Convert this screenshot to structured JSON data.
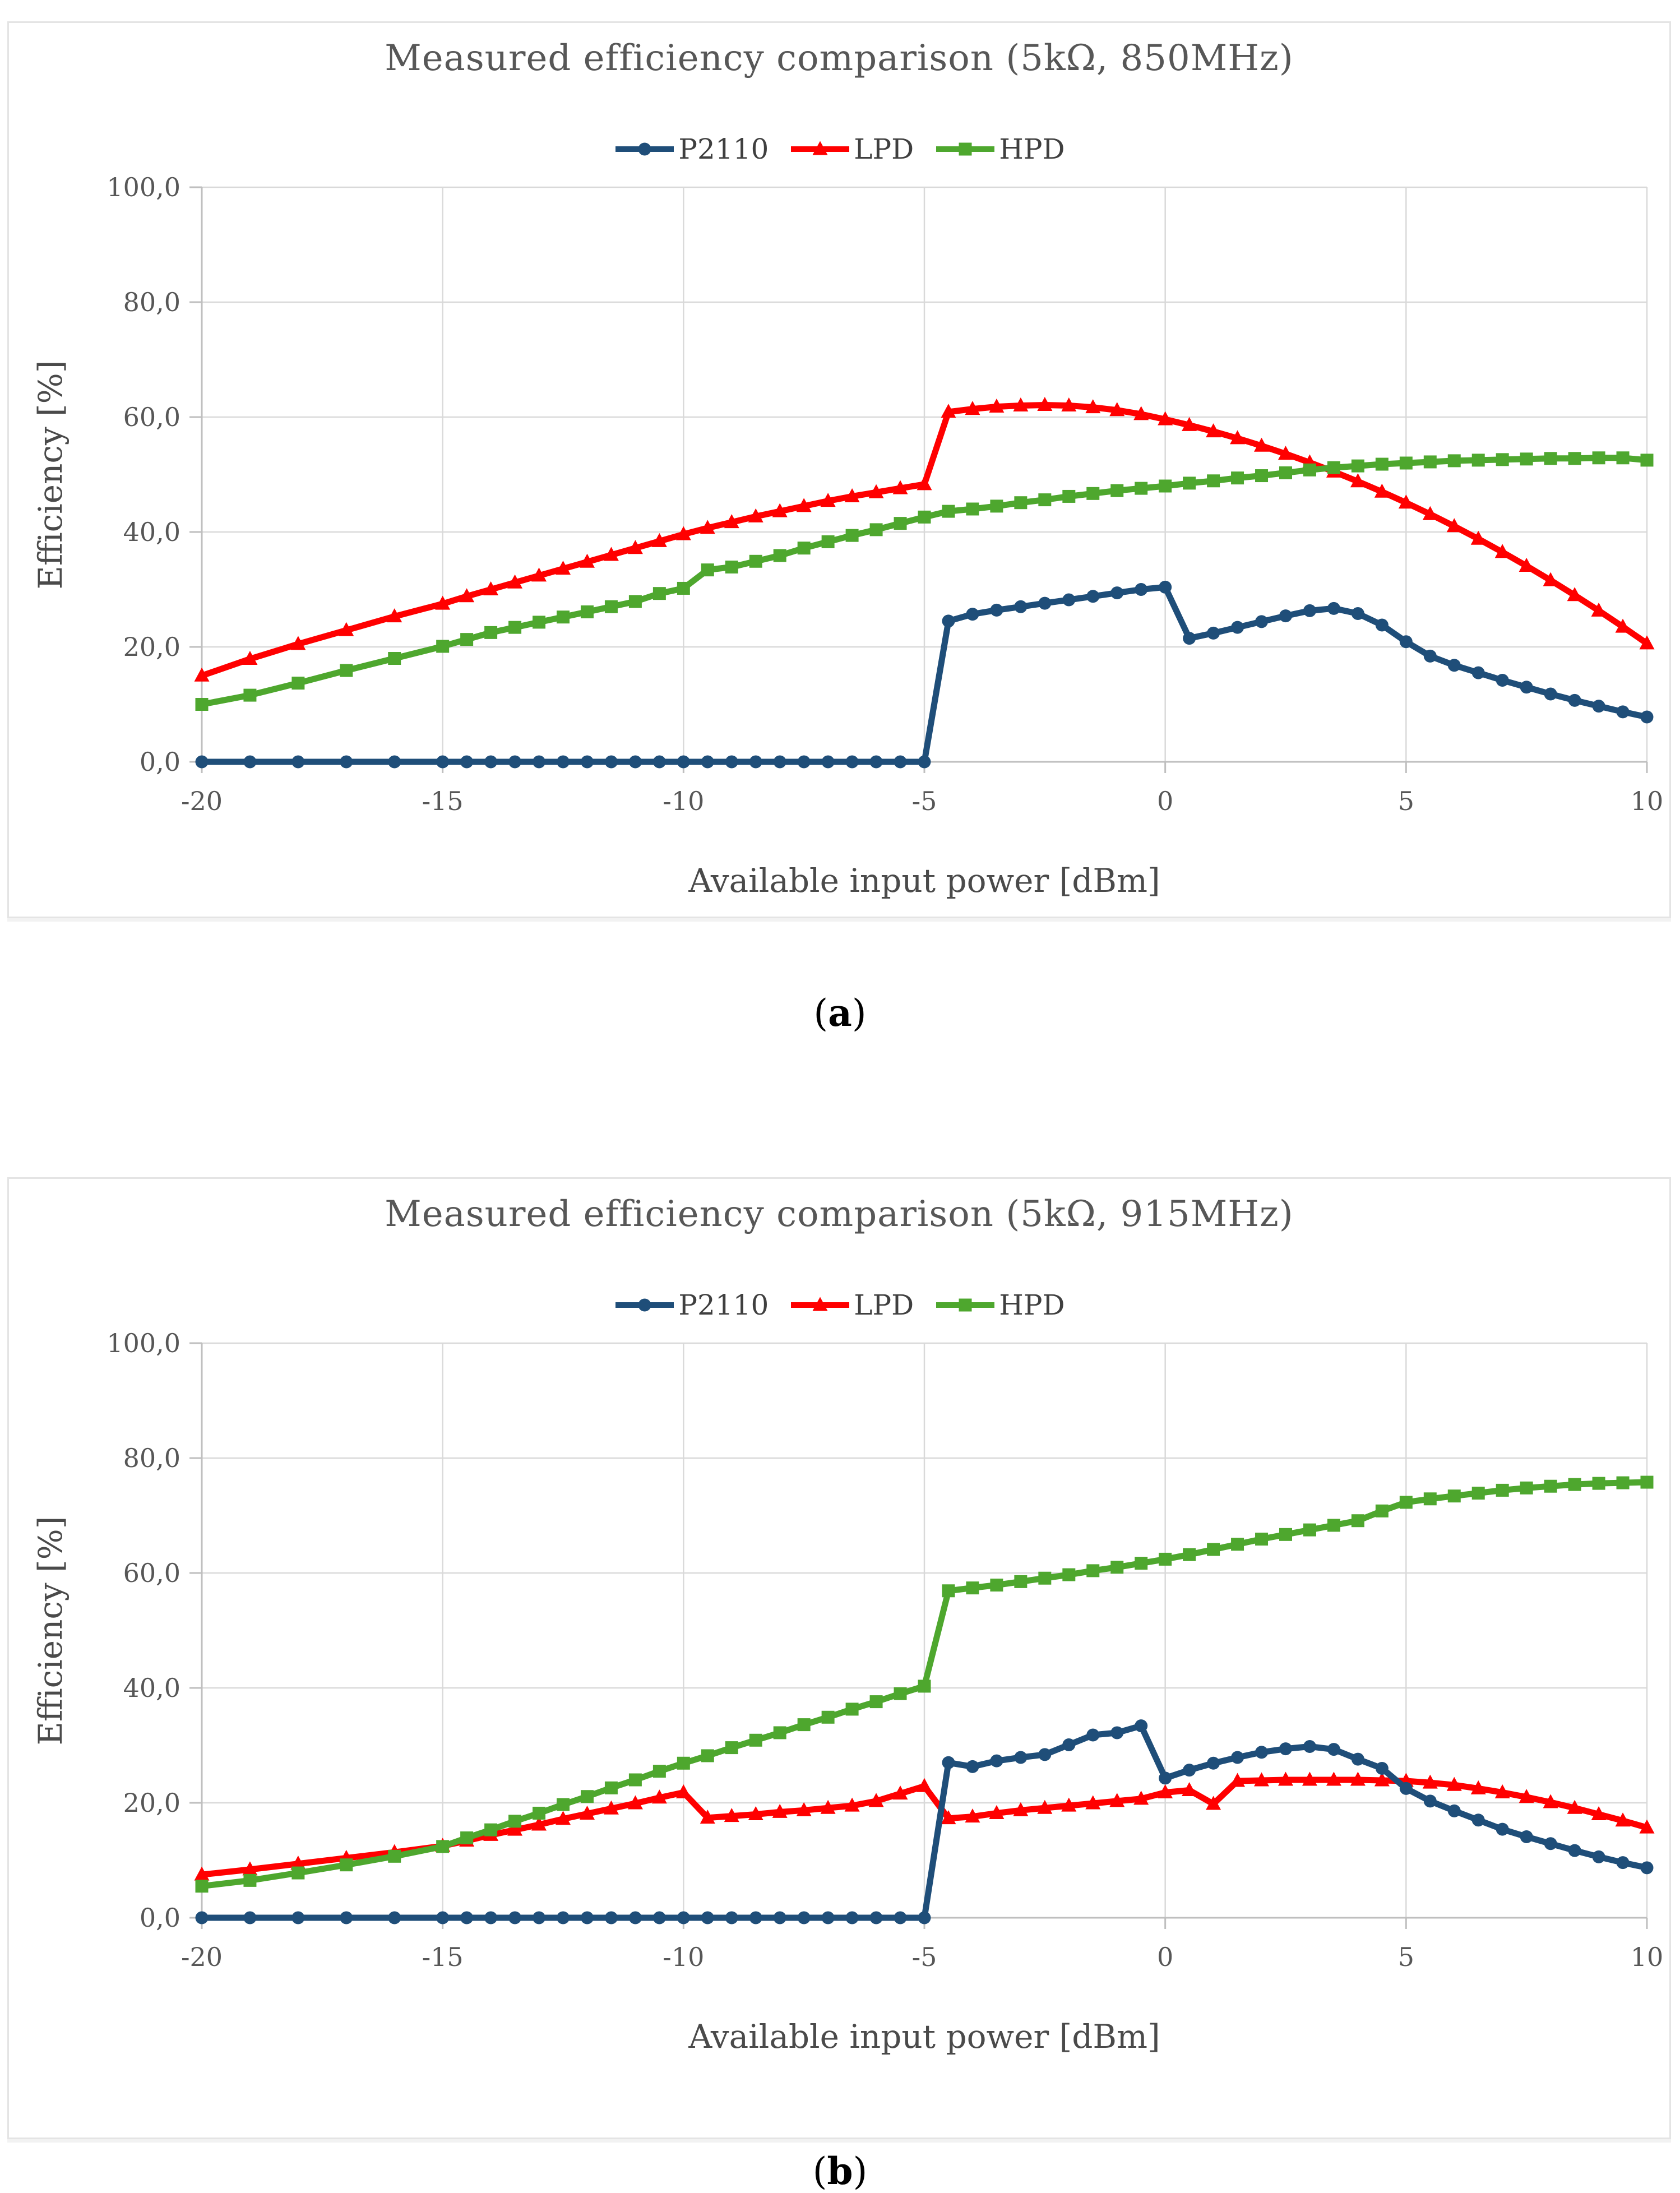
{
  "captions": {
    "open": "(",
    "close": ")",
    "a": "a",
    "b": "b"
  },
  "legend_labels": [
    "P2110",
    "LPD",
    "HPD"
  ],
  "colors": {
    "p2110": "#1F4E79",
    "lpd": "#FF0000",
    "hpd": "#4EA72E",
    "gridline": "#D9D9D9",
    "axis": "#BFBFBF",
    "text": "#575757"
  },
  "chart_data": [
    {
      "type": "line",
      "title": "Measured efficiency comparison (5kΩ, 850MHz)",
      "xlabel": "Available input power [dBm]",
      "ylabel": "Efficiency [%]",
      "xlim": [
        -20,
        10
      ],
      "ylim": [
        0,
        100
      ],
      "grid": true,
      "legend_position": "top",
      "x_ticks": {
        "values": [
          -20,
          -15,
          -10,
          -5,
          0,
          5,
          10
        ],
        "labels": [
          "-20",
          "-15",
          "-10",
          "-5",
          "0",
          "5",
          "10"
        ]
      },
      "y_ticks": {
        "values": [
          0,
          20,
          40,
          60,
          80,
          100
        ],
        "labels": [
          "0,0",
          "20,0",
          "40,0",
          "60,0",
          "80,0",
          "100,0"
        ]
      },
      "x": [
        -20,
        -19,
        -18,
        -17,
        -16,
        -15,
        -14.5,
        -14,
        -13.5,
        -13,
        -12.5,
        -12,
        -11.5,
        -11,
        -10.5,
        -10,
        -9.5,
        -9,
        -8.5,
        -8,
        -7.5,
        -7,
        -6.5,
        -6,
        -5.5,
        -5,
        -4.5,
        -4,
        -3.5,
        -3,
        -2.5,
        -2,
        -1.5,
        -1,
        -0.5,
        0,
        0.5,
        1,
        1.5,
        2,
        2.5,
        3,
        3.5,
        4,
        4.5,
        5,
        5.5,
        6,
        6.5,
        7,
        7.5,
        8,
        8.5,
        9,
        9.5,
        10
      ],
      "series": [
        {
          "name": "P2110",
          "color": "#1F4E79",
          "marker": "circle",
          "values": [
            0,
            0,
            0,
            0,
            0,
            0,
            0,
            0,
            0,
            0,
            0,
            0,
            0,
            0,
            0,
            0,
            0,
            0,
            0,
            0,
            0,
            0,
            0,
            0,
            0,
            0,
            24.5,
            25.7,
            26.4,
            27.0,
            27.6,
            28.2,
            28.8,
            29.4,
            30.0,
            30.4,
            21.5,
            22.4,
            23.4,
            24.4,
            25.4,
            26.3,
            26.7,
            25.8,
            23.8,
            20.9,
            18.4,
            16.8,
            15.5,
            14.2,
            13.0,
            11.8,
            10.7,
            9.7,
            8.7,
            7.8
          ]
        },
        {
          "name": "LPD",
          "color": "#FF0000",
          "marker": "triangle",
          "values": [
            15.0,
            17.9,
            20.5,
            22.9,
            25.3,
            27.5,
            28.8,
            30.0,
            31.2,
            32.4,
            33.6,
            34.8,
            36.0,
            37.2,
            38.4,
            39.6,
            40.7,
            41.7,
            42.7,
            43.6,
            44.5,
            45.4,
            46.2,
            46.9,
            47.6,
            48.3,
            60.9,
            61.4,
            61.8,
            62.0,
            62.1,
            62.0,
            61.7,
            61.2,
            60.5,
            59.6,
            58.6,
            57.5,
            56.3,
            55.0,
            53.6,
            52.1,
            50.5,
            48.8,
            47.0,
            45.1,
            43.1,
            41.0,
            38.8,
            36.5,
            34.1,
            31.6,
            29.0,
            26.3,
            23.5,
            20.6
          ]
        },
        {
          "name": "HPD",
          "color": "#4EA72E",
          "marker": "square",
          "values": [
            10.0,
            11.6,
            13.7,
            15.9,
            18.0,
            20.1,
            21.3,
            22.5,
            23.4,
            24.3,
            25.2,
            26.1,
            27.0,
            27.9,
            29.3,
            30.2,
            33.4,
            33.9,
            34.9,
            35.9,
            37.2,
            38.3,
            39.4,
            40.4,
            41.5,
            42.6,
            43.6,
            44.0,
            44.5,
            45.1,
            45.6,
            46.2,
            46.7,
            47.2,
            47.6,
            48.0,
            48.5,
            48.9,
            49.4,
            49.8,
            50.3,
            50.8,
            51.2,
            51.5,
            51.8,
            52.0,
            52.2,
            52.4,
            52.5,
            52.6,
            52.7,
            52.8,
            52.8,
            52.9,
            52.9,
            52.5
          ]
        }
      ]
    },
    {
      "type": "line",
      "title": "Measured efficiency comparison (5kΩ, 915MHz)",
      "xlabel": "Available input power [dBm]",
      "ylabel": "Efficiency [%]",
      "xlim": [
        -20,
        10
      ],
      "ylim": [
        0,
        100
      ],
      "grid": true,
      "legend_position": "top",
      "x_ticks": {
        "values": [
          -20,
          -15,
          -10,
          -5,
          0,
          5,
          10
        ],
        "labels": [
          "-20",
          "-15",
          "-10",
          "-5",
          "0",
          "5",
          "10"
        ]
      },
      "y_ticks": {
        "values": [
          0,
          20,
          40,
          60,
          80,
          100
        ],
        "labels": [
          "0,0",
          "20,0",
          "40,0",
          "60,0",
          "80,0",
          "100,0"
        ]
      },
      "x": [
        -20,
        -19,
        -18,
        -17,
        -16,
        -15,
        -14.5,
        -14,
        -13.5,
        -13,
        -12.5,
        -12,
        -11.5,
        -11,
        -10.5,
        -10,
        -9.5,
        -9,
        -8.5,
        -8,
        -7.5,
        -7,
        -6.5,
        -6,
        -5.5,
        -5,
        -4.5,
        -4,
        -3.5,
        -3,
        -2.5,
        -2,
        -1.5,
        -1,
        -0.5,
        0,
        0.5,
        1,
        1.5,
        2,
        2.5,
        3,
        3.5,
        4,
        4.5,
        5,
        5.5,
        6,
        6.5,
        7,
        7.5,
        8,
        8.5,
        9,
        9.5,
        10
      ],
      "series": [
        {
          "name": "P2110",
          "color": "#1F4E79",
          "marker": "circle",
          "values": [
            0,
            0,
            0,
            0,
            0,
            0,
            0,
            0,
            0,
            0,
            0,
            0,
            0,
            0,
            0,
            0,
            0,
            0,
            0,
            0,
            0,
            0,
            0,
            0,
            0,
            0,
            27.0,
            26.3,
            27.3,
            27.9,
            28.4,
            30.1,
            31.8,
            32.2,
            33.4,
            24.3,
            25.7,
            26.9,
            27.9,
            28.8,
            29.4,
            29.8,
            29.3,
            27.6,
            26.0,
            22.5,
            20.3,
            18.6,
            17.0,
            15.4,
            14.1,
            12.9,
            11.7,
            10.6,
            9.6,
            8.7
          ]
        },
        {
          "name": "LPD",
          "color": "#FF0000",
          "marker": "triangle",
          "values": [
            7.5,
            8.4,
            9.4,
            10.4,
            11.4,
            12.5,
            13.4,
            14.4,
            15.3,
            16.2,
            17.2,
            18.1,
            19.0,
            19.9,
            20.9,
            21.8,
            17.4,
            17.7,
            18.0,
            18.4,
            18.7,
            19.1,
            19.5,
            20.3,
            21.6,
            22.9,
            17.3,
            17.6,
            18.2,
            18.7,
            19.1,
            19.5,
            19.9,
            20.3,
            20.7,
            21.8,
            22.2,
            19.8,
            23.8,
            23.9,
            24.0,
            24.0,
            24.0,
            24.0,
            23.9,
            23.8,
            23.5,
            23.1,
            22.5,
            21.8,
            21.0,
            20.1,
            19.1,
            18.0,
            16.9,
            15.7
          ]
        },
        {
          "name": "HPD",
          "color": "#4EA72E",
          "marker": "square",
          "values": [
            5.5,
            6.5,
            7.8,
            9.2,
            10.7,
            12.4,
            13.9,
            15.3,
            16.8,
            18.2,
            19.7,
            21.1,
            22.6,
            24.0,
            25.5,
            26.9,
            28.2,
            29.6,
            30.9,
            32.2,
            33.6,
            34.9,
            36.3,
            37.6,
            39.0,
            40.3,
            56.9,
            57.4,
            57.9,
            58.5,
            59.1,
            59.7,
            60.4,
            61.0,
            61.7,
            62.4,
            63.2,
            64.1,
            65.0,
            65.9,
            66.7,
            67.5,
            68.3,
            69.1,
            70.8,
            72.3,
            72.9,
            73.4,
            73.9,
            74.4,
            74.8,
            75.1,
            75.4,
            75.6,
            75.7,
            75.8
          ]
        }
      ]
    }
  ]
}
